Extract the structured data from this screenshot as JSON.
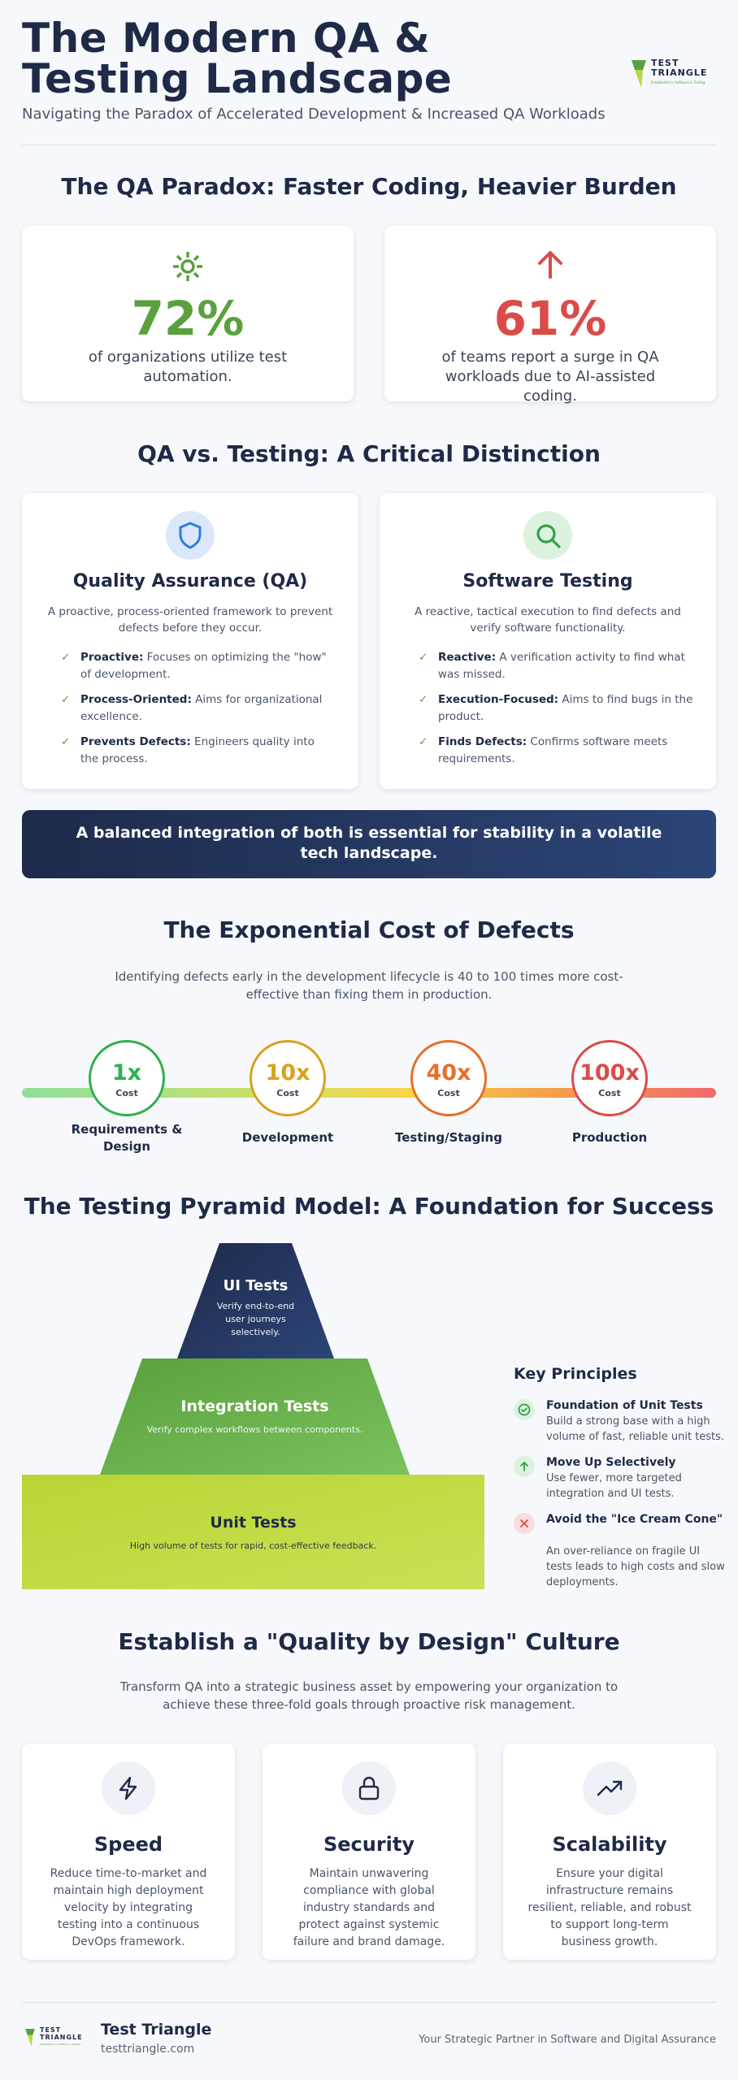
{
  "header": {
    "title": "The Modern QA & Testing Landscape",
    "subtitle": "Navigating the Paradox of Accelerated Development & Increased QA Workloads",
    "logo_text_line1": "TEST",
    "logo_text_line2": "TRIANGLE",
    "logo_tagline": "Established in Software & Testing"
  },
  "paradox": {
    "title": "The QA Paradox: Faster Coding, Heavier Burden",
    "stats": [
      {
        "value": "72%",
        "label": "of organizations utilize test automation.",
        "icon": "gear-icon",
        "color": "#5aa13d"
      },
      {
        "value": "61%",
        "label": "of teams report a surge in QA workloads due to AI-assisted coding.",
        "icon": "arrow-up-icon",
        "color": "#d94c48"
      }
    ]
  },
  "distinction": {
    "title": "QA vs. Testing: A Critical Distinction",
    "cards": [
      {
        "title": "Quality Assurance (QA)",
        "desc": "A proactive, process-oriented framework to prevent defects before they occur.",
        "icon": "shield-icon",
        "points": [
          {
            "bold": "Proactive:",
            "text": " Focuses on optimizing the \"how\" of development."
          },
          {
            "bold": "Process-Oriented:",
            "text": " Aims for organizational excellence."
          },
          {
            "bold": "Prevents Defects:",
            "text": " Engineers quality into the process."
          }
        ]
      },
      {
        "title": "Software Testing",
        "desc": "A reactive, tactical execution to find defects and verify software functionality.",
        "icon": "magnifier-icon",
        "points": [
          {
            "bold": "Reactive:",
            "text": " A verification activity to find what was missed."
          },
          {
            "bold": "Execution-Focused:",
            "text": " Aims to find bugs in the product."
          },
          {
            "bold": "Finds Defects:",
            "text": " Confirms software meets requirements."
          }
        ]
      }
    ],
    "banner": "A balanced integration of both is essential for stability in a volatile tech landscape."
  },
  "cost": {
    "title": "The Exponential Cost of Defects",
    "desc": "Identifying defects early in the development lifecycle is 40 to 100 times more cost-effective than fixing them in production.",
    "cost_label": "Cost",
    "stages": [
      {
        "multiplier": "1x",
        "name": "Requirements & Design",
        "color": "#2fb04f"
      },
      {
        "multiplier": "10x",
        "name": "Development",
        "color": "#d9a21b"
      },
      {
        "multiplier": "40x",
        "name": "Testing/Staging",
        "color": "#e5702a"
      },
      {
        "multiplier": "100x",
        "name": "Production",
        "color": "#d94c48"
      }
    ]
  },
  "pyramid": {
    "title": "The Testing Pyramid Model: A Foundation for Success",
    "levels": [
      {
        "title": "UI Tests",
        "desc": "Verify end-to-end user journeys selectively."
      },
      {
        "title": "Integration Tests",
        "desc": "Verify complex workflows between components."
      },
      {
        "title": "Unit Tests",
        "desc": "High volume of tests for rapid, cost-effective feedback."
      }
    ],
    "principles_title": "Key Principles",
    "principles": [
      {
        "title": "Foundation of Unit Tests",
        "desc": "Build a strong base with a high volume of fast, reliable unit tests.",
        "icon": "check-circle-icon"
      },
      {
        "title": "Move Up Selectively",
        "desc": "Use fewer, more targeted integration and UI tests.",
        "icon": "arrow-up-icon"
      },
      {
        "title": "Avoid the \"Ice Cream Cone\"",
        "desc": "An over-reliance on fragile UI tests leads to high costs and slow deployments.",
        "icon": "x-icon"
      }
    ]
  },
  "culture": {
    "title": "Establish a \"Quality by Design\" Culture",
    "desc": "Transform QA into a strategic business asset by empowering your organization to achieve these three-fold goals through proactive risk management.",
    "goals": [
      {
        "title": "Speed",
        "desc": "Reduce time-to-market and maintain high deployment velocity by integrating testing into a continuous DevOps framework.",
        "icon": "lightning-icon"
      },
      {
        "title": "Security",
        "desc": "Maintain unwavering compliance with global industry standards and protect against systemic failure and brand damage.",
        "icon": "lock-icon"
      },
      {
        "title": "Scalability",
        "desc": "Ensure your digital infrastructure remains resilient, reliable, and robust to support long-term business growth.",
        "icon": "trend-up-icon"
      }
    ]
  },
  "footer": {
    "name": "Test Triangle",
    "url": "testtriangle.com",
    "tagline": "Your Strategic Partner in Software and Digital Assurance"
  }
}
